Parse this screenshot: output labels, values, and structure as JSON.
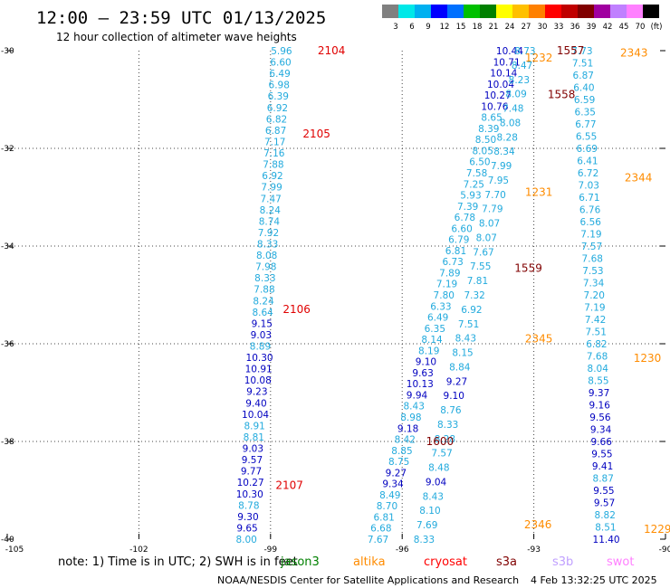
{
  "header": {
    "title": "12:00 — 23:59 UTC 01/13/2025",
    "subtitle": "12 hour collection of altimeter wave heights"
  },
  "colorbar": {
    "colors": [
      "#808080",
      "#00e8e8",
      "#00b0f0",
      "#0000ff",
      "#0070ff",
      "#00c000",
      "#008000",
      "#ffff00",
      "#ffc000",
      "#ff8000",
      "#ff0000",
      "#c00000",
      "#800000",
      "#a000a0",
      "#c080ff",
      "#ff80ff",
      "#000000"
    ],
    "labels": [
      "3",
      "6",
      "9",
      "12",
      "15",
      "18",
      "21",
      "24",
      "27",
      "30",
      "33",
      "36",
      "39",
      "42",
      "45",
      "70",
      "(ft)"
    ]
  },
  "footer": {
    "note": "note:  1) Time is in UTC; 2) SWH is in feet",
    "credit": "NOAA/NESDIS Center for Satellite Applications and Research",
    "timestamp": "4 Feb 13:32:25 UTC 2025"
  },
  "legend": [
    {
      "label": "jason3",
      "color": "#008000"
    },
    {
      "label": "altika",
      "color": "#ff8c00"
    },
    {
      "label": "cryosat",
      "color": "#ff0000"
    },
    {
      "label": "s3a",
      "color": "#800000"
    },
    {
      "label": "s3b",
      "color": "#c0a0ff"
    },
    {
      "label": "swot",
      "color": "#ff80ff"
    }
  ],
  "chart_data": {
    "type": "scatter",
    "title": "12:00 — 23:59 UTC 01/13/2025",
    "subtitle": "12 hour collection of altimeter wave heights",
    "xlim": [
      -105,
      -90
    ],
    "ylim": [
      -40,
      -30
    ],
    "xticks": [
      -105,
      -102,
      -99,
      -96,
      -93,
      -90
    ],
    "yticks": [
      -30,
      -32,
      -34,
      -36,
      -38,
      -40
    ],
    "xtick_labels": [
      "-105",
      "-102",
      "-99",
      "-96",
      "-93",
      "-90"
    ],
    "ytick_labels": [
      "-30",
      "-32",
      "-34",
      "-36",
      "-38",
      "-40"
    ],
    "grid": true,
    "units": "ft",
    "value_colors": {
      "light": "#22aadd",
      "dark": "#0000c0"
    },
    "tracks": [
      {
        "x_start": -98.75,
        "x_end": -99.55,
        "values": [
          "5.96",
          "6.60",
          "6.49",
          "6.98",
          "6.39",
          "6.92",
          "6.82",
          "6.87",
          "7.17",
          "7.16",
          "7.88",
          "6.92",
          "7.99",
          "7.47",
          "8.24",
          "8.74",
          "7.92",
          "8.33",
          "8.08",
          "7.98",
          "8.33",
          "7.88",
          "8.24",
          "8.64",
          "9.15",
          "9.03",
          "8.89",
          "10.30",
          "10.91",
          "10.08",
          "9.23",
          "9.40",
          "10.04",
          "8.91",
          "8.81",
          "9.03",
          "9.57",
          "9.77",
          "10.27",
          "10.30",
          "8.78",
          "9.30",
          "9.65",
          "8.00"
        ],
        "times": [
          {
            "label": "2104",
            "lat": -30.0,
            "dx": 40,
            "color": "#e00000"
          },
          {
            "label": "2105",
            "lat": -31.7,
            "dx": 30,
            "color": "#e00000"
          },
          {
            "label": "2106",
            "lat": -35.3,
            "dx": 22,
            "color": "#e00000"
          },
          {
            "label": "2107",
            "lat": -38.9,
            "dx": 28,
            "color": "#e00000"
          }
        ]
      },
      {
        "x_start": -93.55,
        "x_end": -96.55,
        "values": [
          "10.44",
          "10.71",
          "10.14",
          "10.04",
          "10.27",
          "10.76",
          "8.65",
          "8.39",
          "8.50",
          "8.05",
          "6.50",
          "7.58",
          "7.25",
          "5.93",
          "7.39",
          "6.78",
          "6.60",
          "6.79",
          "6.81",
          "6.73",
          "7.89",
          "7.19",
          "7.80",
          "6.33",
          "6.49",
          "6.35",
          "8.14",
          "8.19",
          "9.10",
          "9.63",
          "10.13",
          "9.94",
          "8.43",
          "8.98",
          "9.18",
          "8.42",
          "8.85",
          "8.75",
          "9.27",
          "9.34",
          "8.49",
          "8.70",
          "6.81",
          "6.68",
          "7.67"
        ],
        "times": [
          {
            "label": "1600",
            "lat": -38.0,
            "dx": 24,
            "color": "#800000"
          }
        ]
      },
      {
        "x_start": -93.2,
        "x_end": -95.5,
        "values": [
          "8.73",
          "8.47",
          "8.23",
          "8.09",
          "7.48",
          "8.08",
          "8.28",
          "8.34",
          "7.99",
          "7.95",
          "7.70",
          "7.79",
          "8.07",
          "8.07",
          "7.67",
          "7.55",
          "7.81",
          "7.32",
          "6.92",
          "7.51",
          "8.43",
          "8.15",
          "8.84",
          "9.27",
          "9.10",
          "8.76",
          "8.33",
          "8.28",
          "7.57",
          "8.48",
          "9.04",
          "8.43",
          "8.10",
          "7.69",
          "8.33"
        ],
        "times": [
          {
            "label": "1557",
            "lat": -30.0,
            "dx": 35,
            "color": "#800000"
          },
          {
            "label": "1558",
            "lat": -30.9,
            "dx": 35,
            "color": "#800000"
          },
          {
            "label": "1559",
            "lat": -34.45,
            "dx": 38,
            "color": "#800000"
          }
        ]
      },
      {
        "x_start": -91.9,
        "x_end": -91.35,
        "values": [
          "7.73",
          "7.51",
          "6.87",
          "6.40",
          "6.59",
          "6.35",
          "6.77",
          "6.55",
          "6.69",
          "6.41",
          "6.72",
          "7.03",
          "6.71",
          "6.76",
          "6.56",
          "7.19",
          "7.57",
          "7.68",
          "7.53",
          "7.34",
          "7.20",
          "7.19",
          "7.42",
          "7.51",
          "6.82",
          "7.68",
          "8.04",
          "8.55",
          "9.37",
          "9.16",
          "9.56",
          "9.34",
          "9.66",
          "9.55",
          "9.41",
          "8.87",
          "9.55",
          "9.57",
          "8.82",
          "8.51",
          "11.40"
        ],
        "times": [
          {
            "label": "2343",
            "lat": -30.05,
            "dx": 42,
            "color": "#ff8c00"
          },
          {
            "label": "2344",
            "lat": -32.6,
            "dx": 40,
            "color": "#ff8c00"
          },
          {
            "label": "1230",
            "lat": -36.3,
            "dx": 40,
            "color": "#ff8c00"
          },
          {
            "label": "1229",
            "lat": -39.8,
            "dx": 42,
            "color": "#ff8c00"
          }
        ]
      },
      {
        "x_start": -93.2,
        "x_end": -93.2,
        "values": [],
        "times": [
          {
            "label": "1232",
            "lat": -30.15,
            "dx": 0,
            "color": "#ff8c00"
          },
          {
            "label": "1231",
            "lat": -32.9,
            "dx": 0,
            "color": "#ff8c00"
          },
          {
            "label": "2345",
            "lat": -35.9,
            "dx": 0,
            "color": "#ff8c00"
          },
          {
            "label": "2346",
            "lat": -39.7,
            "dx": -1,
            "color": "#ff8c00"
          }
        ]
      }
    ]
  }
}
